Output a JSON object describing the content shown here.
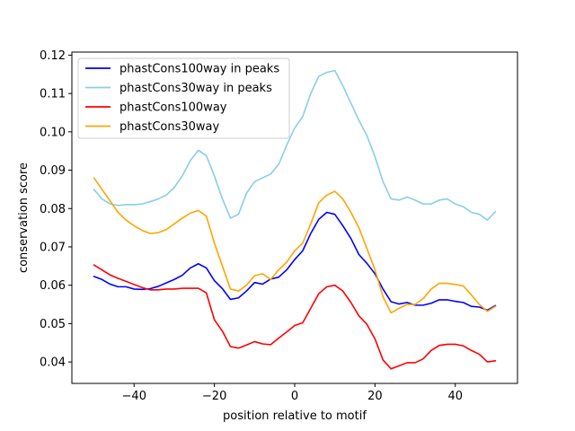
{
  "chart_data": {
    "type": "line",
    "title": "",
    "xlabel": "position relative to motif",
    "ylabel": "conservation score",
    "xlim": [
      -55.5,
      55.5
    ],
    "ylim": [
      0.0344,
      0.1208
    ],
    "xticks": [
      -40,
      -20,
      0,
      20,
      40
    ],
    "xtick_labels": [
      "−40",
      "−20",
      "0",
      "20",
      "40"
    ],
    "yticks": [
      0.04,
      0.05,
      0.06,
      0.07,
      0.08,
      0.09,
      0.1,
      0.11,
      0.12
    ],
    "ytick_labels": [
      "0.04",
      "0.05",
      "0.06",
      "0.07",
      "0.08",
      "0.09",
      "0.10",
      "0.11",
      "0.12"
    ],
    "grid": false,
    "legend_position": "top-left",
    "series": [
      {
        "name": "phastCons100way in peaks",
        "color": "#0000ff",
        "x": [
          -50,
          -48,
          -46,
          -44,
          -42,
          -40,
          -38,
          -36,
          -34,
          -32,
          -30,
          -28,
          -26,
          -24,
          -22,
          -20,
          -18,
          -16,
          -14,
          -12,
          -10,
          -8,
          -6,
          -4,
          -2,
          0,
          2,
          4,
          6,
          8,
          10,
          12,
          14,
          16,
          18,
          20,
          22,
          24,
          26,
          28,
          30,
          32,
          34,
          36,
          38,
          40,
          42,
          44,
          46,
          48,
          50
        ],
        "y": [
          0.0623,
          0.0615,
          0.0603,
          0.0596,
          0.0596,
          0.059,
          0.0589,
          0.0591,
          0.0597,
          0.0606,
          0.0615,
          0.0626,
          0.0645,
          0.0656,
          0.0645,
          0.0612,
          0.0591,
          0.0563,
          0.0567,
          0.0585,
          0.0607,
          0.0603,
          0.0616,
          0.0621,
          0.064,
          0.0667,
          0.069,
          0.0735,
          0.0772,
          0.079,
          0.0785,
          0.0755,
          0.0722,
          0.068,
          0.0657,
          0.063,
          0.059,
          0.0557,
          0.0551,
          0.0555,
          0.0548,
          0.0548,
          0.0553,
          0.0562,
          0.0562,
          0.0558,
          0.0555,
          0.0545,
          0.0543,
          0.0535,
          0.0547
        ]
      },
      {
        "name": "phastCons30way in peaks",
        "color": "#87ceeb",
        "x": [
          -50,
          -48,
          -46,
          -44,
          -42,
          -40,
          -38,
          -36,
          -34,
          -32,
          -30,
          -28,
          -26,
          -24,
          -22,
          -20,
          -18,
          -16,
          -14,
          -12,
          -10,
          -8,
          -6,
          -4,
          -2,
          0,
          2,
          4,
          6,
          8,
          10,
          12,
          14,
          16,
          18,
          20,
          22,
          24,
          26,
          28,
          30,
          32,
          34,
          36,
          38,
          40,
          42,
          44,
          46,
          48,
          50
        ],
        "y": [
          0.085,
          0.0825,
          0.0812,
          0.0808,
          0.081,
          0.081,
          0.0812,
          0.0818,
          0.0825,
          0.0835,
          0.0855,
          0.0885,
          0.0925,
          0.0952,
          0.0938,
          0.0885,
          0.0825,
          0.0775,
          0.0785,
          0.084,
          0.087,
          0.088,
          0.089,
          0.0915,
          0.0965,
          0.101,
          0.104,
          0.11,
          0.1145,
          0.1155,
          0.116,
          0.112,
          0.1075,
          0.103,
          0.099,
          0.0935,
          0.087,
          0.0825,
          0.0822,
          0.083,
          0.0822,
          0.0812,
          0.0812,
          0.0822,
          0.0825,
          0.0812,
          0.0805,
          0.079,
          0.0785,
          0.077,
          0.0792
        ]
      },
      {
        "name": "phastCons100way",
        "color": "#ff0000",
        "x": [
          -50,
          -48,
          -46,
          -44,
          -42,
          -40,
          -38,
          -36,
          -34,
          -32,
          -30,
          -28,
          -26,
          -24,
          -22,
          -20,
          -18,
          -16,
          -14,
          -12,
          -10,
          -8,
          -6,
          -4,
          -2,
          0,
          2,
          4,
          6,
          8,
          10,
          12,
          14,
          16,
          18,
          20,
          22,
          24,
          26,
          28,
          30,
          32,
          34,
          36,
          38,
          40,
          42,
          44,
          46,
          48,
          50
        ],
        "y": [
          0.0653,
          0.064,
          0.0627,
          0.0618,
          0.061,
          0.0602,
          0.0594,
          0.0588,
          0.0588,
          0.059,
          0.059,
          0.0592,
          0.0592,
          0.0592,
          0.058,
          0.051,
          0.048,
          0.044,
          0.0436,
          0.0444,
          0.0453,
          0.0447,
          0.0445,
          0.0462,
          0.0478,
          0.0495,
          0.0502,
          0.054,
          0.0578,
          0.0596,
          0.06,
          0.0585,
          0.0555,
          0.052,
          0.0498,
          0.046,
          0.0405,
          0.0382,
          0.039,
          0.0398,
          0.0398,
          0.0408,
          0.043,
          0.0443,
          0.0446,
          0.0446,
          0.0442,
          0.043,
          0.042,
          0.04,
          0.0403
        ]
      },
      {
        "name": "phastCons30way",
        "color": "#ffa500",
        "x": [
          -50,
          -48,
          -46,
          -44,
          -42,
          -40,
          -38,
          -36,
          -34,
          -32,
          -30,
          -28,
          -26,
          -24,
          -22,
          -20,
          -18,
          -16,
          -14,
          -12,
          -10,
          -8,
          -6,
          -4,
          -2,
          0,
          2,
          4,
          6,
          8,
          10,
          12,
          14,
          16,
          18,
          20,
          22,
          24,
          26,
          28,
          30,
          32,
          34,
          36,
          38,
          40,
          42,
          44,
          46,
          48,
          50
        ],
        "y": [
          0.088,
          0.085,
          0.082,
          0.079,
          0.077,
          0.0755,
          0.0743,
          0.0735,
          0.0737,
          0.0745,
          0.076,
          0.0775,
          0.0788,
          0.0795,
          0.078,
          0.071,
          0.065,
          0.059,
          0.0585,
          0.06,
          0.0625,
          0.063,
          0.0615,
          0.064,
          0.066,
          0.069,
          0.071,
          0.076,
          0.0815,
          0.0835,
          0.0845,
          0.0825,
          0.079,
          0.075,
          0.0695,
          0.064,
          0.057,
          0.0528,
          0.054,
          0.055,
          0.055,
          0.0565,
          0.059,
          0.0605,
          0.0605,
          0.0602,
          0.0598,
          0.0575,
          0.055,
          0.0532,
          0.0545
        ]
      }
    ]
  }
}
